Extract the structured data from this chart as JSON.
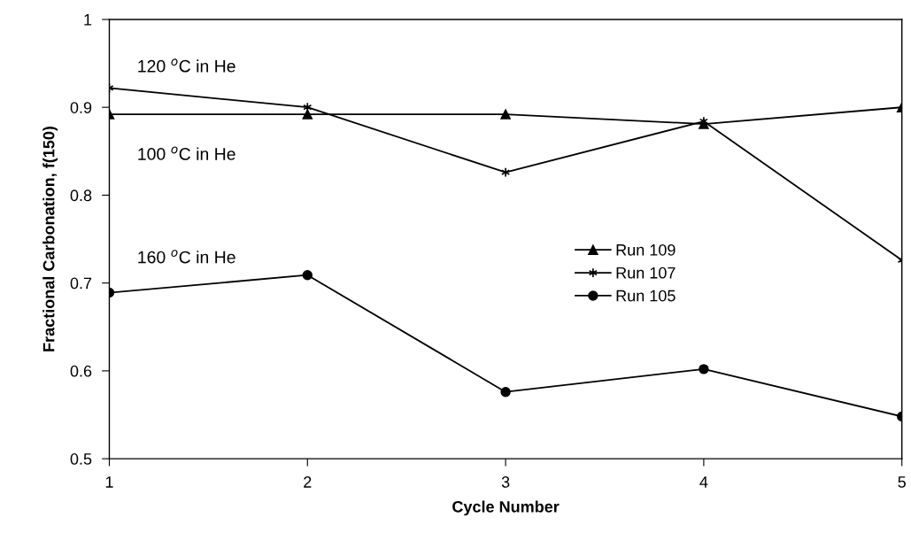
{
  "chart_data": {
    "type": "line",
    "xlabel": "Cycle Number",
    "ylabel": "Fractional Carbonation, f(150)",
    "x": [
      1,
      2,
      3,
      4,
      5
    ],
    "series": [
      {
        "name": "Run 109",
        "color": "#000000",
        "marker": "triangle",
        "values": [
          0.892,
          0.892,
          0.892,
          0.881,
          0.9
        ]
      },
      {
        "name": "Run 107",
        "color": "#000000",
        "marker": "cross",
        "values": [
          0.922,
          0.9,
          0.826,
          0.884,
          0.726
        ]
      },
      {
        "name": "Run 105",
        "color": "#000000",
        "marker": "circle",
        "values": [
          0.689,
          0.709,
          0.576,
          0.602,
          0.548
        ]
      }
    ],
    "xlim": [
      1,
      5
    ],
    "xticks": [
      1,
      2,
      3,
      4,
      5
    ],
    "ylim": [
      0.5,
      1
    ],
    "yticks": [
      0.5,
      0.6,
      0.7,
      0.8,
      0.9,
      {
        "value": 1,
        "label": "1"
      }
    ],
    "annotations": [
      "120 $^{o}$C in He",
      "100 $^{o}$C in He",
      "160 $^{o}$C in He"
    ],
    "grid": false,
    "legend": "right",
    "line_style": "solid"
  }
}
